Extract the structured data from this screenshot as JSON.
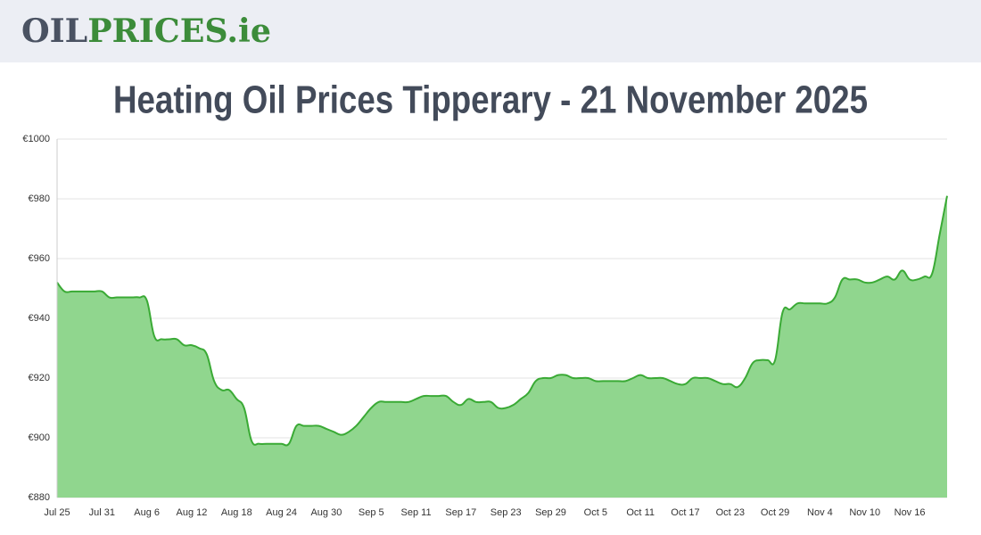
{
  "header": {
    "logo": [
      {
        "text": "OIL",
        "color": "#4a5262"
      },
      {
        "text": "PRICES.ie",
        "color": "#3c8c3a"
      }
    ]
  },
  "chart_data": {
    "type": "area",
    "title": "Heating Oil Prices Tipperary - 21 November 2025",
    "categories": [
      "Jul 25",
      null,
      null,
      null,
      null,
      null,
      "Jul 31",
      null,
      null,
      null,
      null,
      null,
      "Aug 6",
      null,
      null,
      null,
      null,
      null,
      "Aug 12",
      null,
      null,
      null,
      null,
      null,
      "Aug 18",
      null,
      null,
      null,
      null,
      null,
      "Aug 24",
      null,
      null,
      null,
      null,
      null,
      "Aug 30",
      null,
      null,
      null,
      null,
      null,
      "Sep 5",
      null,
      null,
      null,
      null,
      null,
      "Sep 11",
      null,
      null,
      null,
      null,
      null,
      "Sep 17",
      null,
      null,
      null,
      null,
      null,
      "Sep 23",
      null,
      null,
      null,
      null,
      null,
      "Sep 29",
      null,
      null,
      null,
      null,
      null,
      "Oct 5",
      null,
      null,
      null,
      null,
      null,
      "Oct 11",
      null,
      null,
      null,
      null,
      null,
      "Oct 17",
      null,
      null,
      null,
      null,
      null,
      "Oct 23",
      null,
      null,
      null,
      null,
      null,
      "Oct 29",
      null,
      null,
      null,
      null,
      null,
      "Nov 4",
      null,
      null,
      null,
      null,
      null,
      "Nov 10",
      null,
      null,
      null,
      null,
      null,
      "Nov 16",
      null,
      null,
      null,
      null,
      null
    ],
    "values": [
      952,
      949,
      949,
      949,
      949,
      949,
      949,
      947,
      947,
      947,
      947,
      947,
      946,
      934,
      933,
      933,
      933,
      931,
      931,
      930,
      928,
      919,
      916,
      916,
      913,
      910,
      899,
      898,
      898,
      898,
      898,
      898,
      904,
      904,
      904,
      904,
      903,
      902,
      901,
      902,
      904,
      907,
      910,
      912,
      912,
      912,
      912,
      912,
      913,
      914,
      914,
      914,
      914,
      912,
      911,
      913,
      912,
      912,
      912,
      910,
      910,
      911,
      913,
      915,
      919,
      920,
      920,
      921,
      921,
      920,
      920,
      920,
      919,
      919,
      919,
      919,
      919,
      920,
      921,
      920,
      920,
      920,
      919,
      918,
      918,
      920,
      920,
      920,
      919,
      918,
      918,
      917,
      920,
      925,
      926,
      926,
      926,
      942,
      943,
      945,
      945,
      945,
      945,
      945,
      947,
      953,
      953,
      953,
      952,
      952,
      953,
      954,
      953,
      956,
      953,
      953,
      954,
      955,
      968,
      981
    ],
    "color": "#3aaa35",
    "fill_color": "#90d68e",
    "ylim": [
      880,
      1000
    ],
    "yticks": [
      {
        "value": 880,
        "label": "€880"
      },
      {
        "value": 900,
        "label": "€900"
      },
      {
        "value": 920,
        "label": "€920"
      },
      {
        "value": 940,
        "label": "€940"
      },
      {
        "value": 960,
        "label": "€960"
      },
      {
        "value": 980,
        "label": "€980"
      },
      {
        "value": 1000,
        "label": "€1000"
      }
    ],
    "grid": true
  }
}
